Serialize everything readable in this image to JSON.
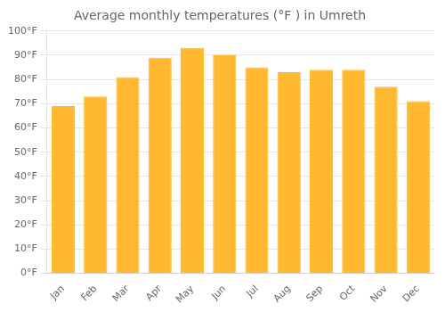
{
  "chart_data": {
    "type": "bar",
    "title": "Average monthly temperatures (°F ) in Umreth",
    "categories": [
      "Jan",
      "Feb",
      "Mar",
      "Apr",
      "May",
      "Jun",
      "Jul",
      "Aug",
      "Sep",
      "Oct",
      "Nov",
      "Dec"
    ],
    "values": [
      69,
      73,
      81,
      89,
      93,
      90,
      85,
      83,
      84,
      84,
      77,
      71
    ],
    "color": "#FFB830",
    "ylim": [
      0,
      100
    ],
    "yticks": [
      {
        "value": 0,
        "label": "0°F"
      },
      {
        "value": 10,
        "label": "10°F"
      },
      {
        "value": 20,
        "label": "20°F"
      },
      {
        "value": 30,
        "label": "30°F"
      },
      {
        "value": 40,
        "label": "40°F"
      },
      {
        "value": 50,
        "label": "50°F"
      },
      {
        "value": 60,
        "label": "60°F"
      },
      {
        "value": 70,
        "label": "70°F"
      },
      {
        "value": 80,
        "label": "80°F"
      },
      {
        "value": 90,
        "label": "90°F"
      },
      {
        "value": 100,
        "label": "100°F"
      }
    ],
    "grid": true
  }
}
